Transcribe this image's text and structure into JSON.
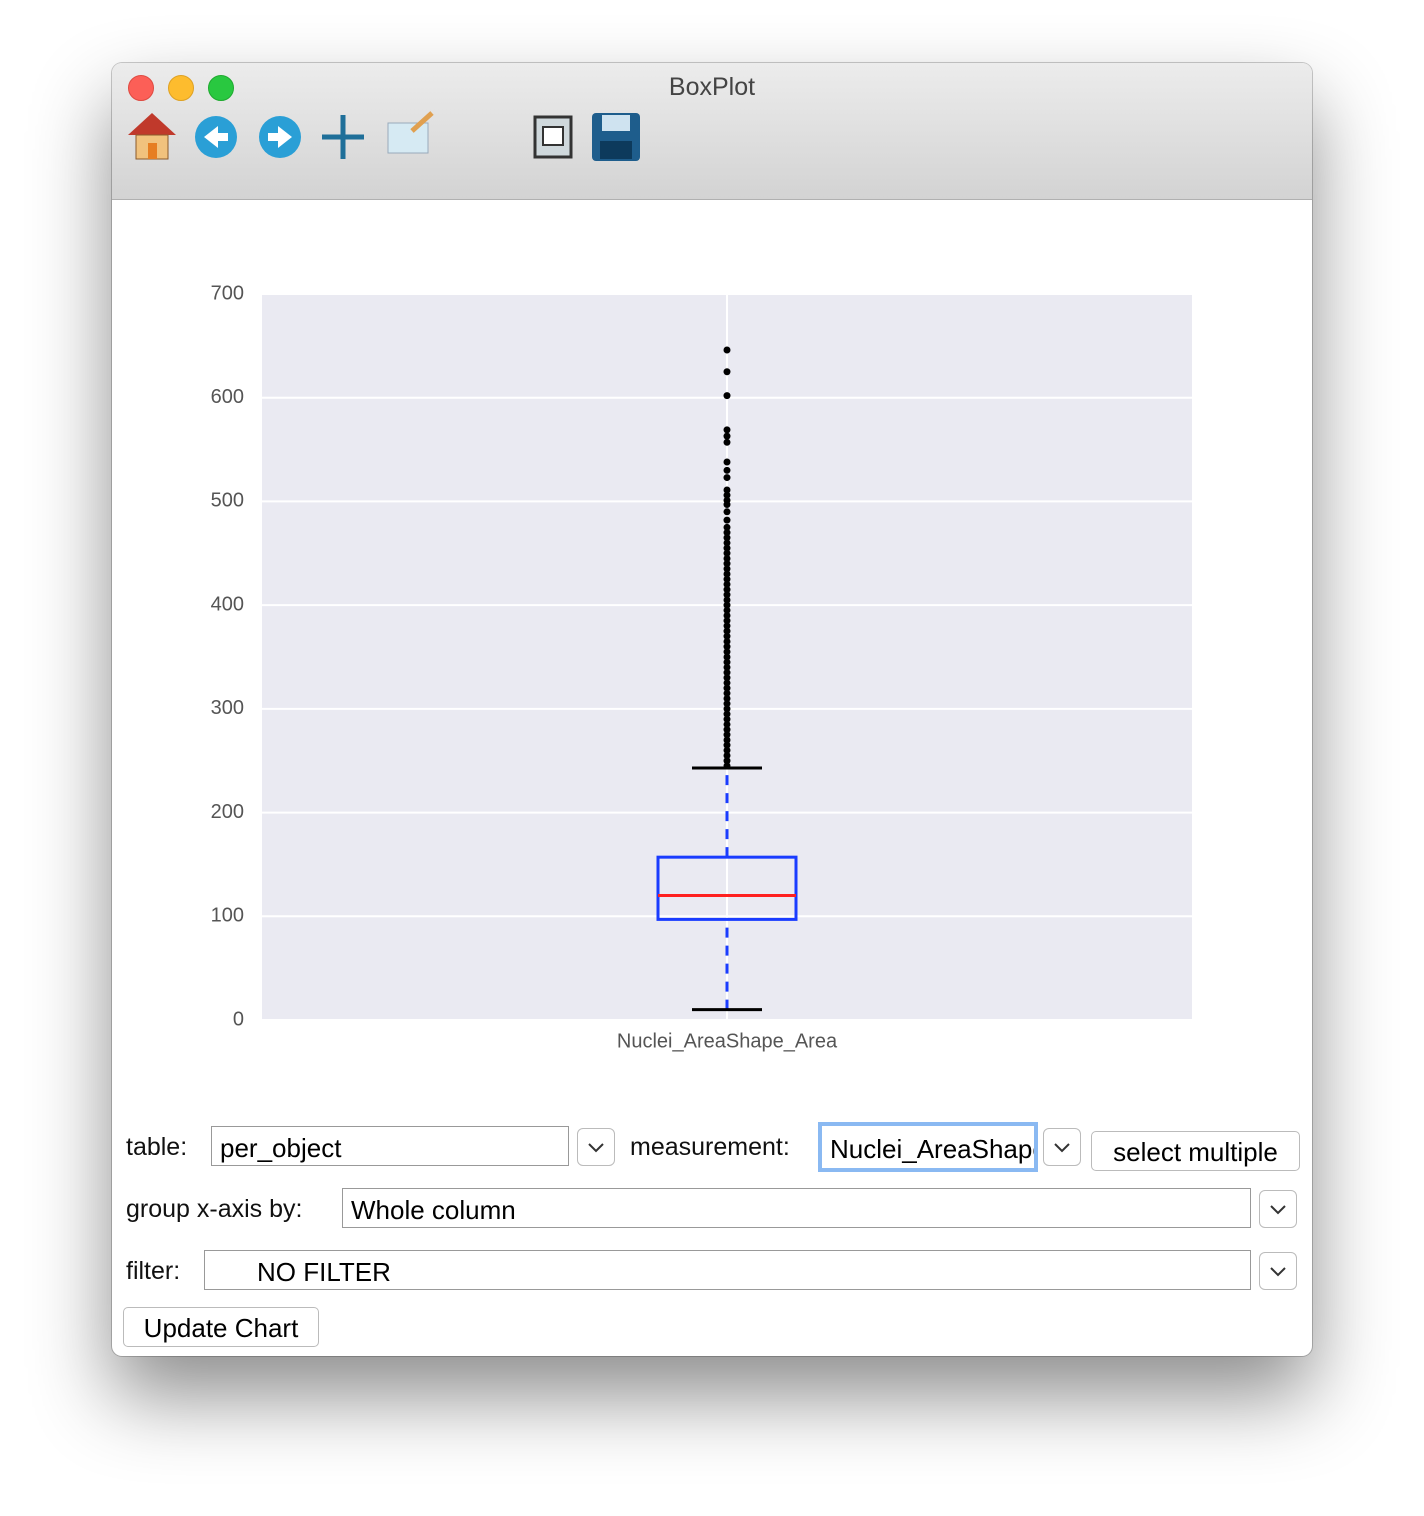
{
  "window": {
    "title": "BoxPlot"
  },
  "chart_data": {
    "type": "box",
    "categories": [
      "Nuclei_AreaShape_Area"
    ],
    "ylim": [
      0,
      700
    ],
    "yticks": [
      0,
      100,
      200,
      300,
      400,
      500,
      600,
      700
    ],
    "grid": true,
    "background": "#eaeaf2",
    "box_color": "#1a3cff",
    "median_color": "#ff2020",
    "flier_color": "#000000",
    "boxes": [
      {
        "whisker_low": 10,
        "q1": 97,
        "median": 120,
        "q3": 157,
        "whisker_high": 243,
        "outliers": [
          245,
          250,
          255,
          260,
          265,
          270,
          275,
          280,
          285,
          290,
          295,
          300,
          305,
          310,
          315,
          320,
          325,
          330,
          335,
          340,
          345,
          350,
          355,
          360,
          365,
          370,
          375,
          380,
          385,
          390,
          395,
          400,
          405,
          410,
          415,
          420,
          425,
          430,
          435,
          440,
          445,
          450,
          455,
          460,
          465,
          470,
          475,
          482,
          490,
          497,
          501,
          506,
          511,
          523,
          530,
          538,
          557,
          563,
          569,
          602,
          625,
          646
        ]
      }
    ]
  },
  "controls": {
    "table": {
      "label": "table:",
      "value": "per_object"
    },
    "measurement": {
      "label": "measurement:",
      "value": "Nuclei_AreaShape_Area"
    },
    "select_multiple": "select multiple",
    "group": {
      "label": "group x-axis by:",
      "value": "Whole column"
    },
    "filter": {
      "label": "filter:",
      "value": "NO FILTER"
    },
    "update": "Update Chart"
  }
}
